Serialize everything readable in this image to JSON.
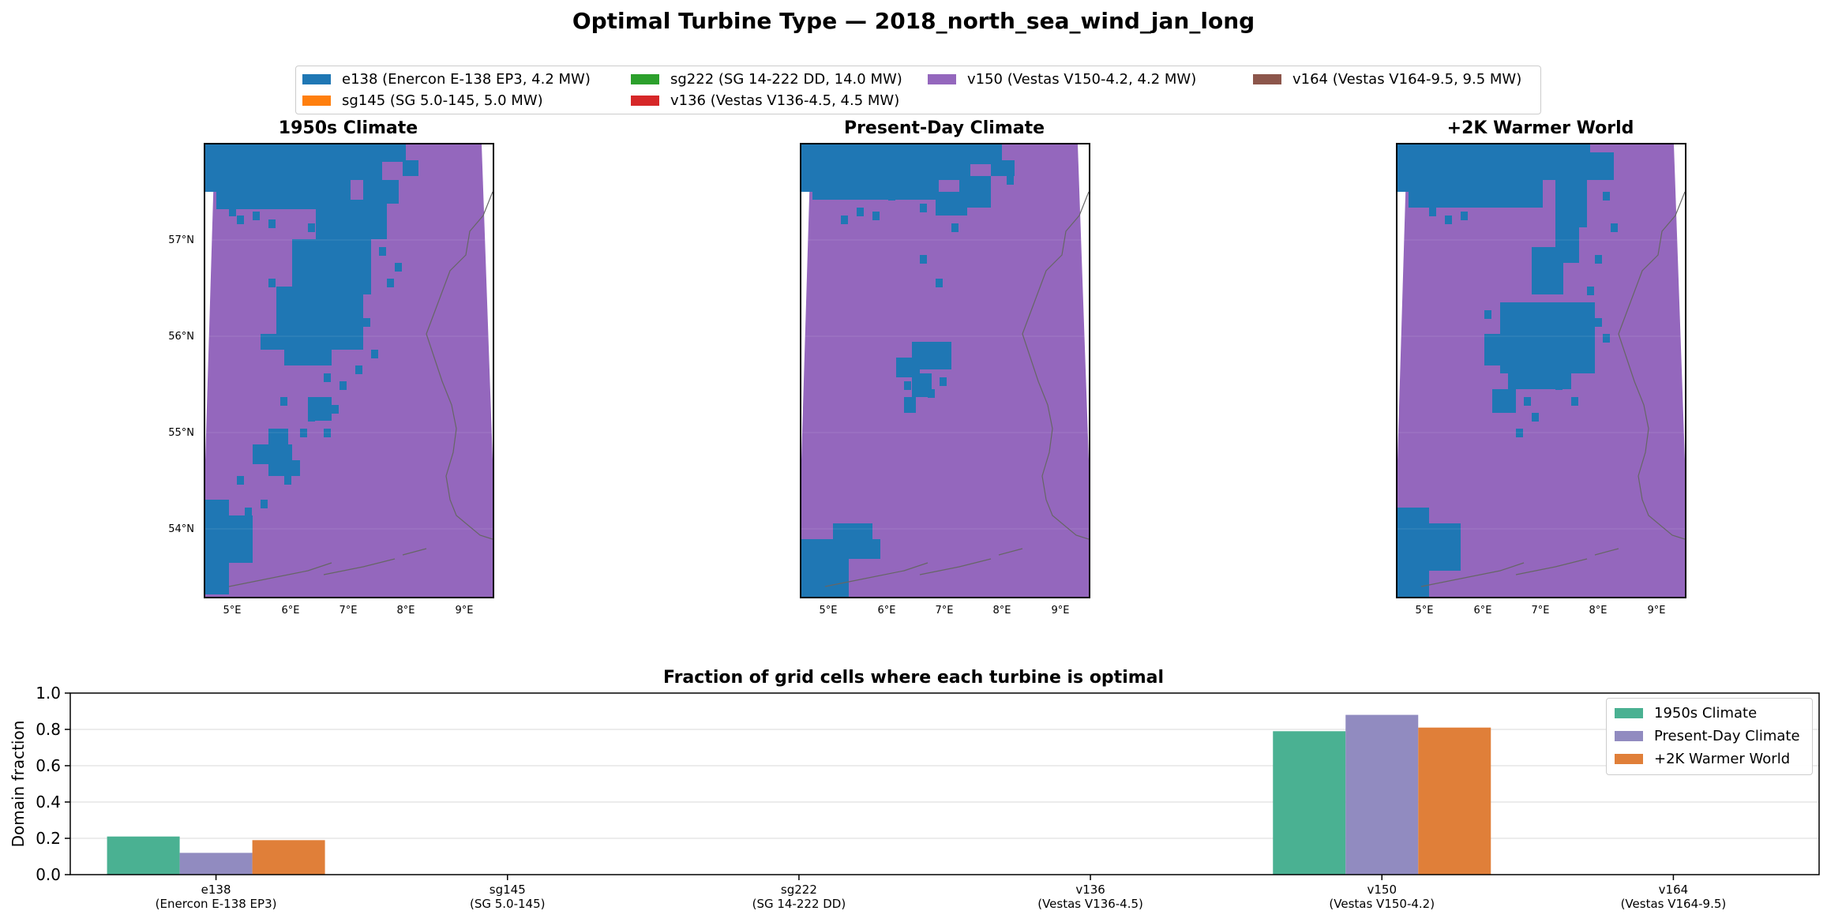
{
  "title": "Optimal Turbine Type — 2018_north_sea_wind_jan_long",
  "legend": [
    {
      "label": "e138 (Enercon E-138 EP3, 4.2 MW)",
      "color": "#1f77b4"
    },
    {
      "label": "sg145 (SG 5.0-145, 5.0 MW)",
      "color": "#ff7f0e"
    },
    {
      "label": "sg222 (SG 14-222 DD, 14.0 MW)",
      "color": "#2ca02c"
    },
    {
      "label": "v136 (Vestas V136-4.5, 4.5 MW)",
      "color": "#d62728"
    },
    {
      "label": "v150 (Vestas V150-4.2, 4.2 MW)",
      "color": "#9467bd"
    },
    {
      "label": "v164 (Vestas V164-9.5, 9.5 MW)",
      "color": "#8c564b"
    }
  ],
  "maps": [
    {
      "title": "1950s Climate"
    },
    {
      "title": "Present-Day Climate"
    },
    {
      "title": "+2K Warmer World"
    }
  ],
  "lat_labels": [
    "57°N",
    "56°N",
    "55°N",
    "54°N"
  ],
  "lon_labels": [
    "5°E",
    "6°E",
    "7°E",
    "8°E",
    "9°E"
  ],
  "chart_data": {
    "type": "bar",
    "title": "Fraction of grid cells where each turbine is optimal",
    "ylabel": "Domain fraction",
    "ylim": [
      0,
      1.0
    ],
    "yticks": [
      "0.0",
      "0.2",
      "0.4",
      "0.6",
      "0.8",
      "1.0"
    ],
    "categories": [
      {
        "code": "e138",
        "name": "(Enercon E-138 EP3)"
      },
      {
        "code": "sg145",
        "name": "(SG 5.0-145)"
      },
      {
        "code": "sg222",
        "name": "(SG 14-222 DD)"
      },
      {
        "code": "v136",
        "name": "(Vestas V136-4.5)"
      },
      {
        "code": "v150",
        "name": "(Vestas V150-4.2)"
      },
      {
        "code": "v164",
        "name": "(Vestas V164-9.5)"
      }
    ],
    "series": [
      {
        "name": "1950s Climate",
        "color": "#4ab192",
        "values": [
          0.21,
          0,
          0,
          0,
          0.79,
          0
        ]
      },
      {
        "name": "Present-Day Climate",
        "color": "#918bc0",
        "values": [
          0.12,
          0,
          0,
          0,
          0.88,
          0
        ]
      },
      {
        "name": "+2K Warmer World",
        "color": "#e07f39",
        "values": [
          0.19,
          0,
          0,
          0,
          0.81,
          0
        ]
      }
    ],
    "grid": true,
    "legend_position": "upper right"
  }
}
